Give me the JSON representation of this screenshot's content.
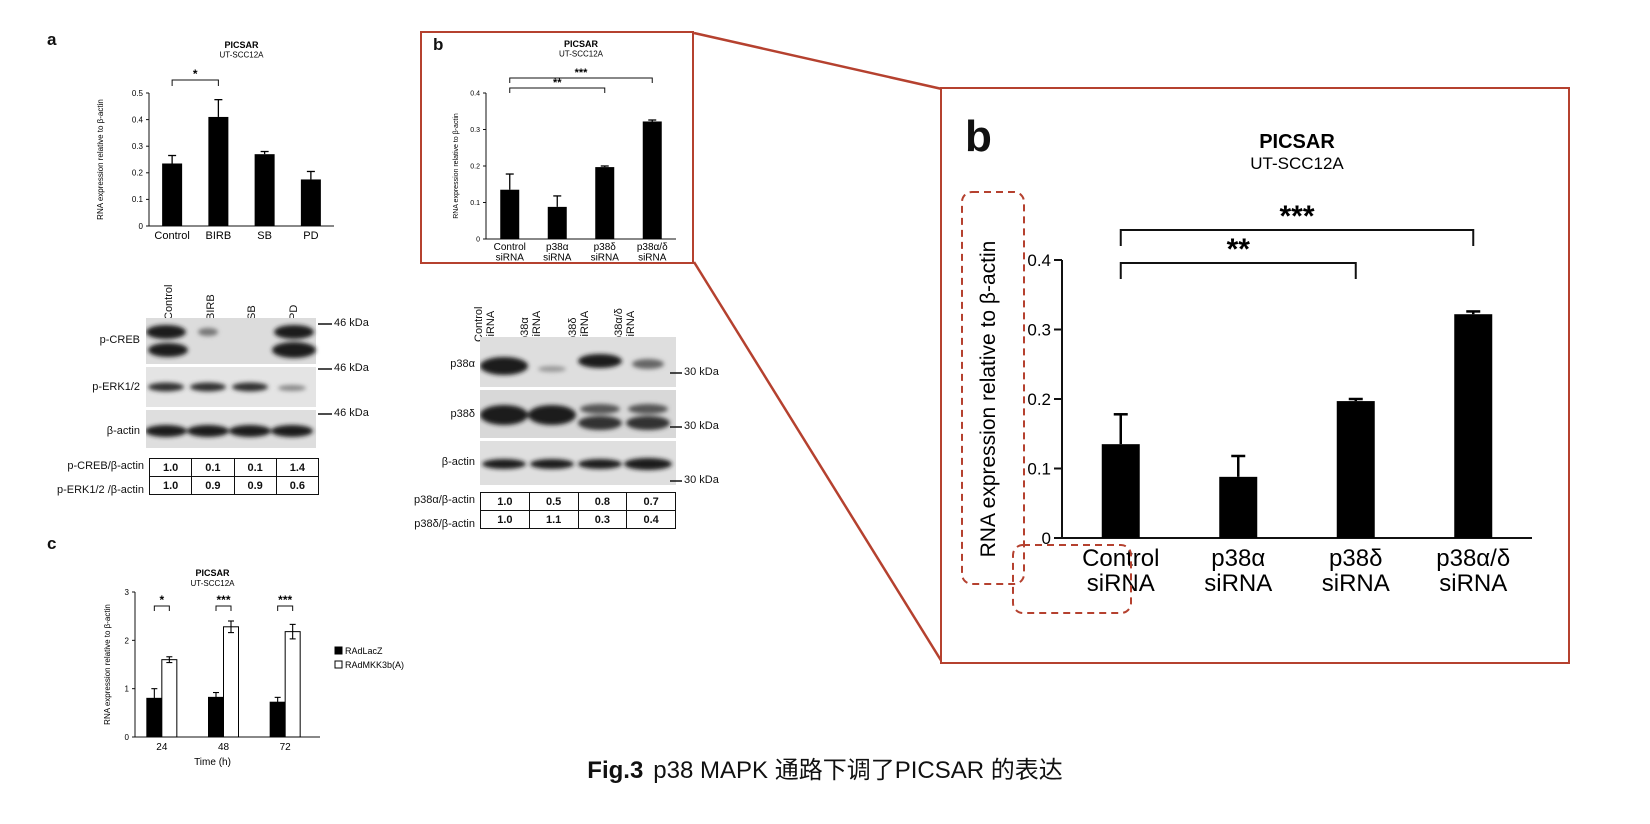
{
  "caption": {
    "fig": "Fig.3",
    "text": "p38 MAPK 通路下调了PICSAR 的表达"
  },
  "panel_a": {
    "letter": "a",
    "blot": {
      "lanes": [
        "Control",
        "BIRB",
        "SB",
        "PD"
      ],
      "rows": [
        "p-CREB",
        "p-ERK1/2",
        "β-actin"
      ],
      "markers": [
        "46 kDa",
        "46 kDa",
        "46 kDa"
      ],
      "quant": [
        {
          "label": "p-CREB/β-actin",
          "values": [
            "1.0",
            "0.1",
            "0.1",
            "1.4"
          ]
        },
        {
          "label": "p-ERK1/2 /β-actin",
          "values": [
            "1.0",
            "0.9",
            "0.9",
            "0.6"
          ]
        }
      ]
    }
  },
  "panel_b": {
    "letter": "b",
    "blot": {
      "lanes": [
        "Control\nsiRNA",
        "p38α\nsiRNA",
        "p38δ\nsiRNA",
        "p38α/δ\nsiRNA"
      ],
      "rows": [
        "p38α",
        "p38δ",
        "β-actin"
      ],
      "markers": [
        "30 kDa",
        "30 kDa",
        "30 kDa"
      ],
      "quant": [
        {
          "label": "p38α/β-actin",
          "values": [
            "1.0",
            "0.5",
            "0.8",
            "0.7"
          ]
        },
        {
          "label": "p38δ/β-actin",
          "values": [
            "1.0",
            "1.1",
            "0.3",
            "0.4"
          ]
        }
      ]
    }
  },
  "panel_c": {
    "letter": "c"
  },
  "chart_data": [
    {
      "id": "a",
      "type": "bar",
      "title": "PICSAR",
      "subtitle": "UT-SCC12A",
      "ylabel": "RNA expression relative to β-actin",
      "xlabel": "",
      "categories": [
        "Control",
        "BIRB",
        "SB",
        "PD"
      ],
      "values": [
        0.235,
        0.41,
        0.27,
        0.175
      ],
      "errors": [
        0.03,
        0.065,
        0.01,
        0.03
      ],
      "ylim": [
        0,
        0.5
      ],
      "yticks": [
        "0",
        "0.1",
        "0.2",
        "0.3",
        "0.4",
        "0.5"
      ],
      "significance": [
        {
          "from": 0,
          "to": 1,
          "label": "*"
        }
      ]
    },
    {
      "id": "b",
      "type": "bar",
      "title": "PICSAR",
      "subtitle": "UT-SCC12A",
      "ylabel": "RNA expression relative to β-actin",
      "xlabel": "",
      "categories": [
        "Control\nsiRNA",
        "p38α\nsiRNA",
        "p38δ\nsiRNA",
        "p38α/δ\nsiRNA"
      ],
      "values": [
        0.135,
        0.088,
        0.197,
        0.322
      ],
      "errors": [
        0.043,
        0.03,
        0.003,
        0.004
      ],
      "ylim": [
        0,
        0.4
      ],
      "yticks": [
        "0",
        "0.1",
        "0.2",
        "0.3",
        "0.4"
      ],
      "significance": [
        {
          "from": 0,
          "to": 2,
          "label": "**"
        },
        {
          "from": 0,
          "to": 3,
          "label": "***"
        }
      ]
    },
    {
      "id": "c",
      "type": "bar",
      "title": "PICSAR",
      "subtitle": "UT-SCC12A",
      "ylabel": "RNA expression relative to β-actin",
      "xlabel": "Time (h)",
      "categories": [
        "24",
        "48",
        "72"
      ],
      "series": [
        {
          "name": "RAdLacZ",
          "values": [
            0.8,
            0.82,
            0.72
          ],
          "errors": [
            0.2,
            0.1,
            0.1
          ],
          "color": "#000000"
        },
        {
          "name": "RAdMKK3b(A)",
          "values": [
            1.6,
            2.28,
            2.18
          ],
          "errors": [
            0.06,
            0.12,
            0.15
          ],
          "color": "#ffffff"
        }
      ],
      "ylim": [
        0,
        3
      ],
      "yticks": [
        "0",
        "1",
        "2",
        "3"
      ],
      "significance": [
        {
          "group": 0,
          "label": "*"
        },
        {
          "group": 1,
          "label": "***"
        },
        {
          "group": 2,
          "label": "***"
        }
      ],
      "legend": "right"
    }
  ],
  "colors": {
    "highlight": "#b5412f",
    "bars": "#000000"
  }
}
